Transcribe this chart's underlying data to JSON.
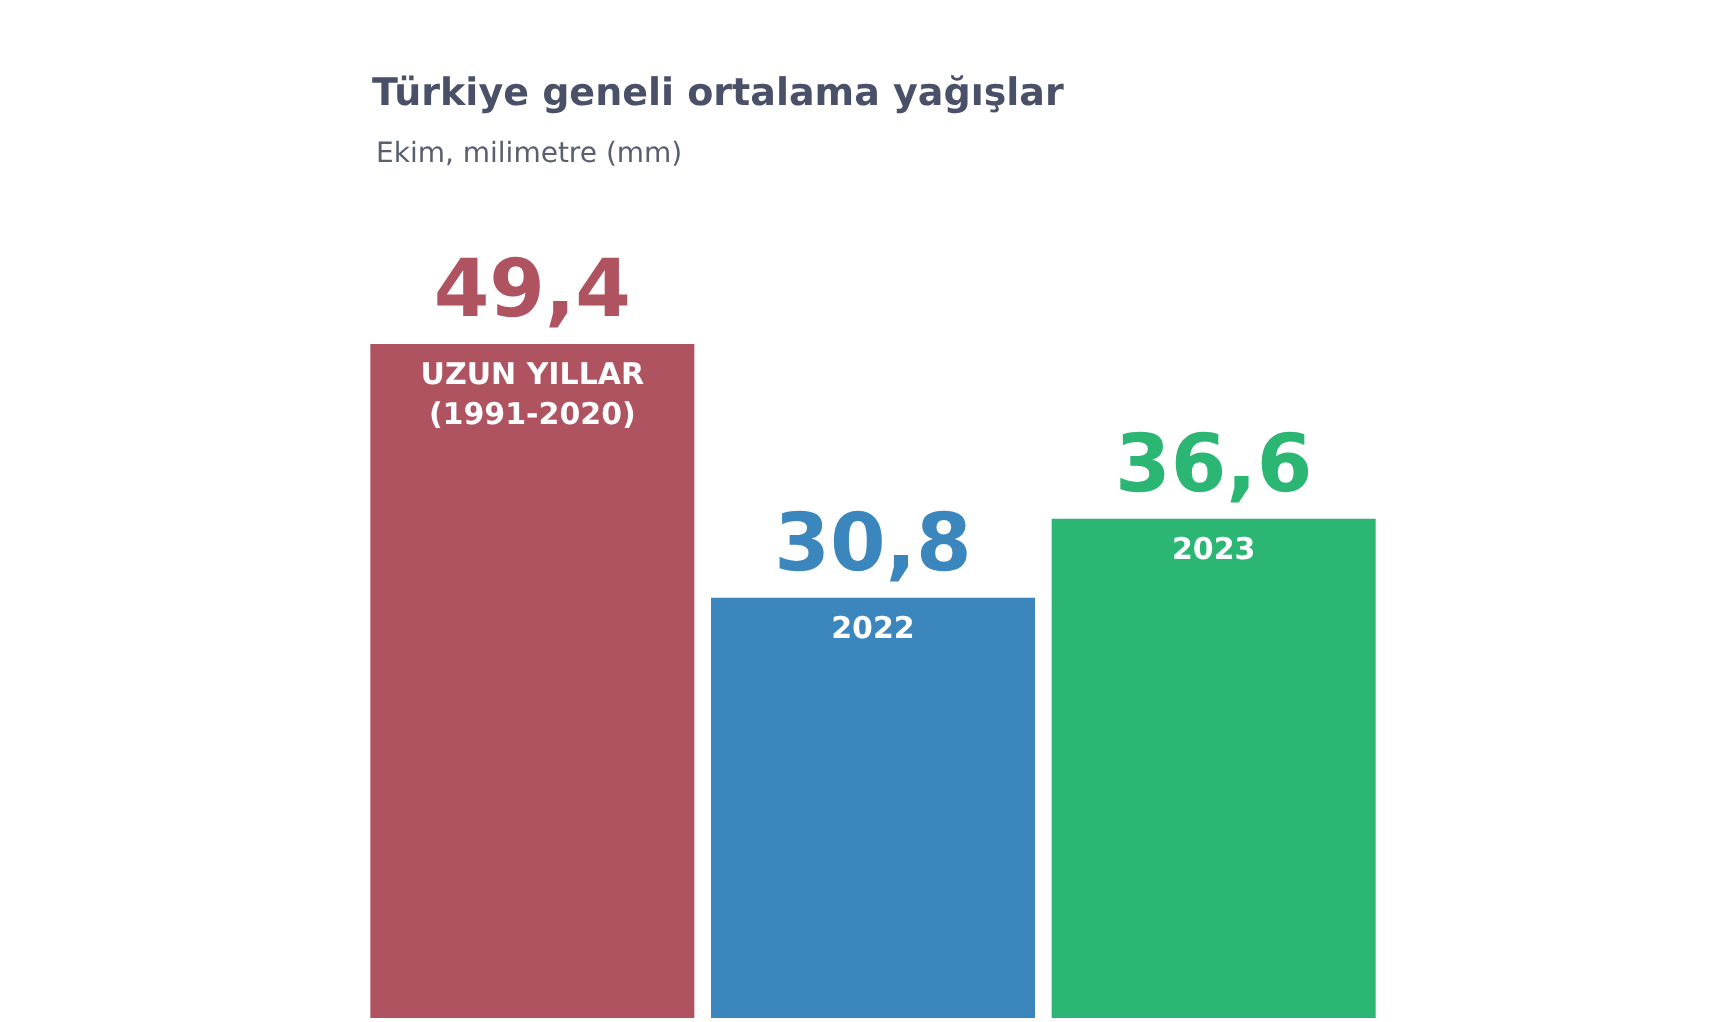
{
  "chart_data": {
    "type": "bar",
    "title": "Türkiye geneli ortalama yağışlar",
    "subtitle": "Ekim, milimetre (mm)",
    "categories": [
      "UZUN YILLAR\n(1991-2020)",
      "2022",
      "2023"
    ],
    "values": [
      49.4,
      30.8,
      36.6
    ],
    "colors": [
      "#b05360",
      "#3a86bd",
      "#2bb673"
    ],
    "value_labels": [
      "49,4",
      "30,8",
      "36,6"
    ]
  }
}
